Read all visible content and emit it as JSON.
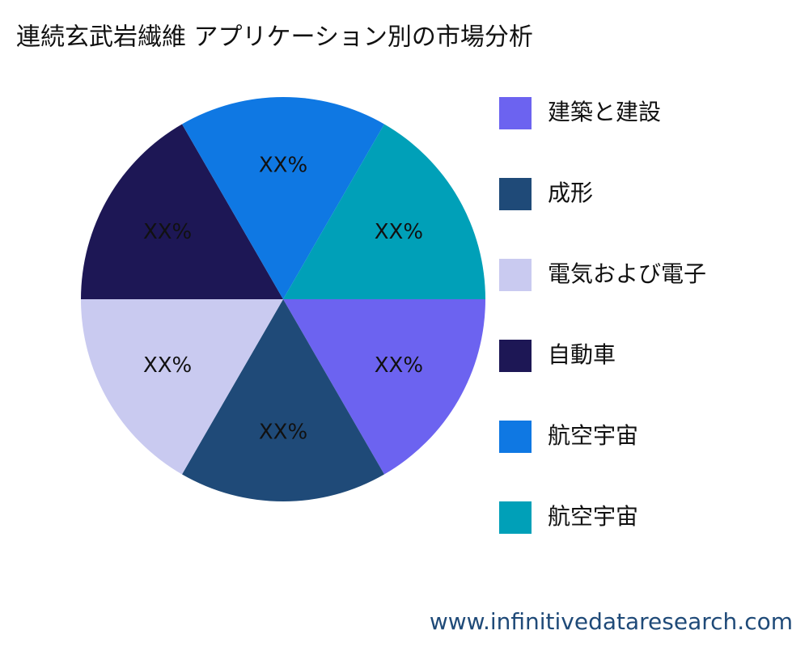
{
  "chart_data": {
    "type": "pie",
    "title": "連続玄武岩繊維 アプリケーション別の市場分析",
    "categories": [
      "建築と建設",
      "成形",
      "電気および電子",
      "自動車",
      "航空宇宙",
      "航空宇宙"
    ],
    "values": [
      16.67,
      16.67,
      16.67,
      16.67,
      16.67,
      16.67
    ],
    "value_labels": [
      "XX%",
      "XX%",
      "XX%",
      "XX%",
      "XX%",
      "XX%"
    ],
    "colors": [
      "#6c63f0",
      "#1f4a78",
      "#c9caf0",
      "#1d1755",
      "#0f78e3",
      "#00a0b8"
    ],
    "legend": "right"
  },
  "watermark": "www.infinitivedataresearch.com"
}
